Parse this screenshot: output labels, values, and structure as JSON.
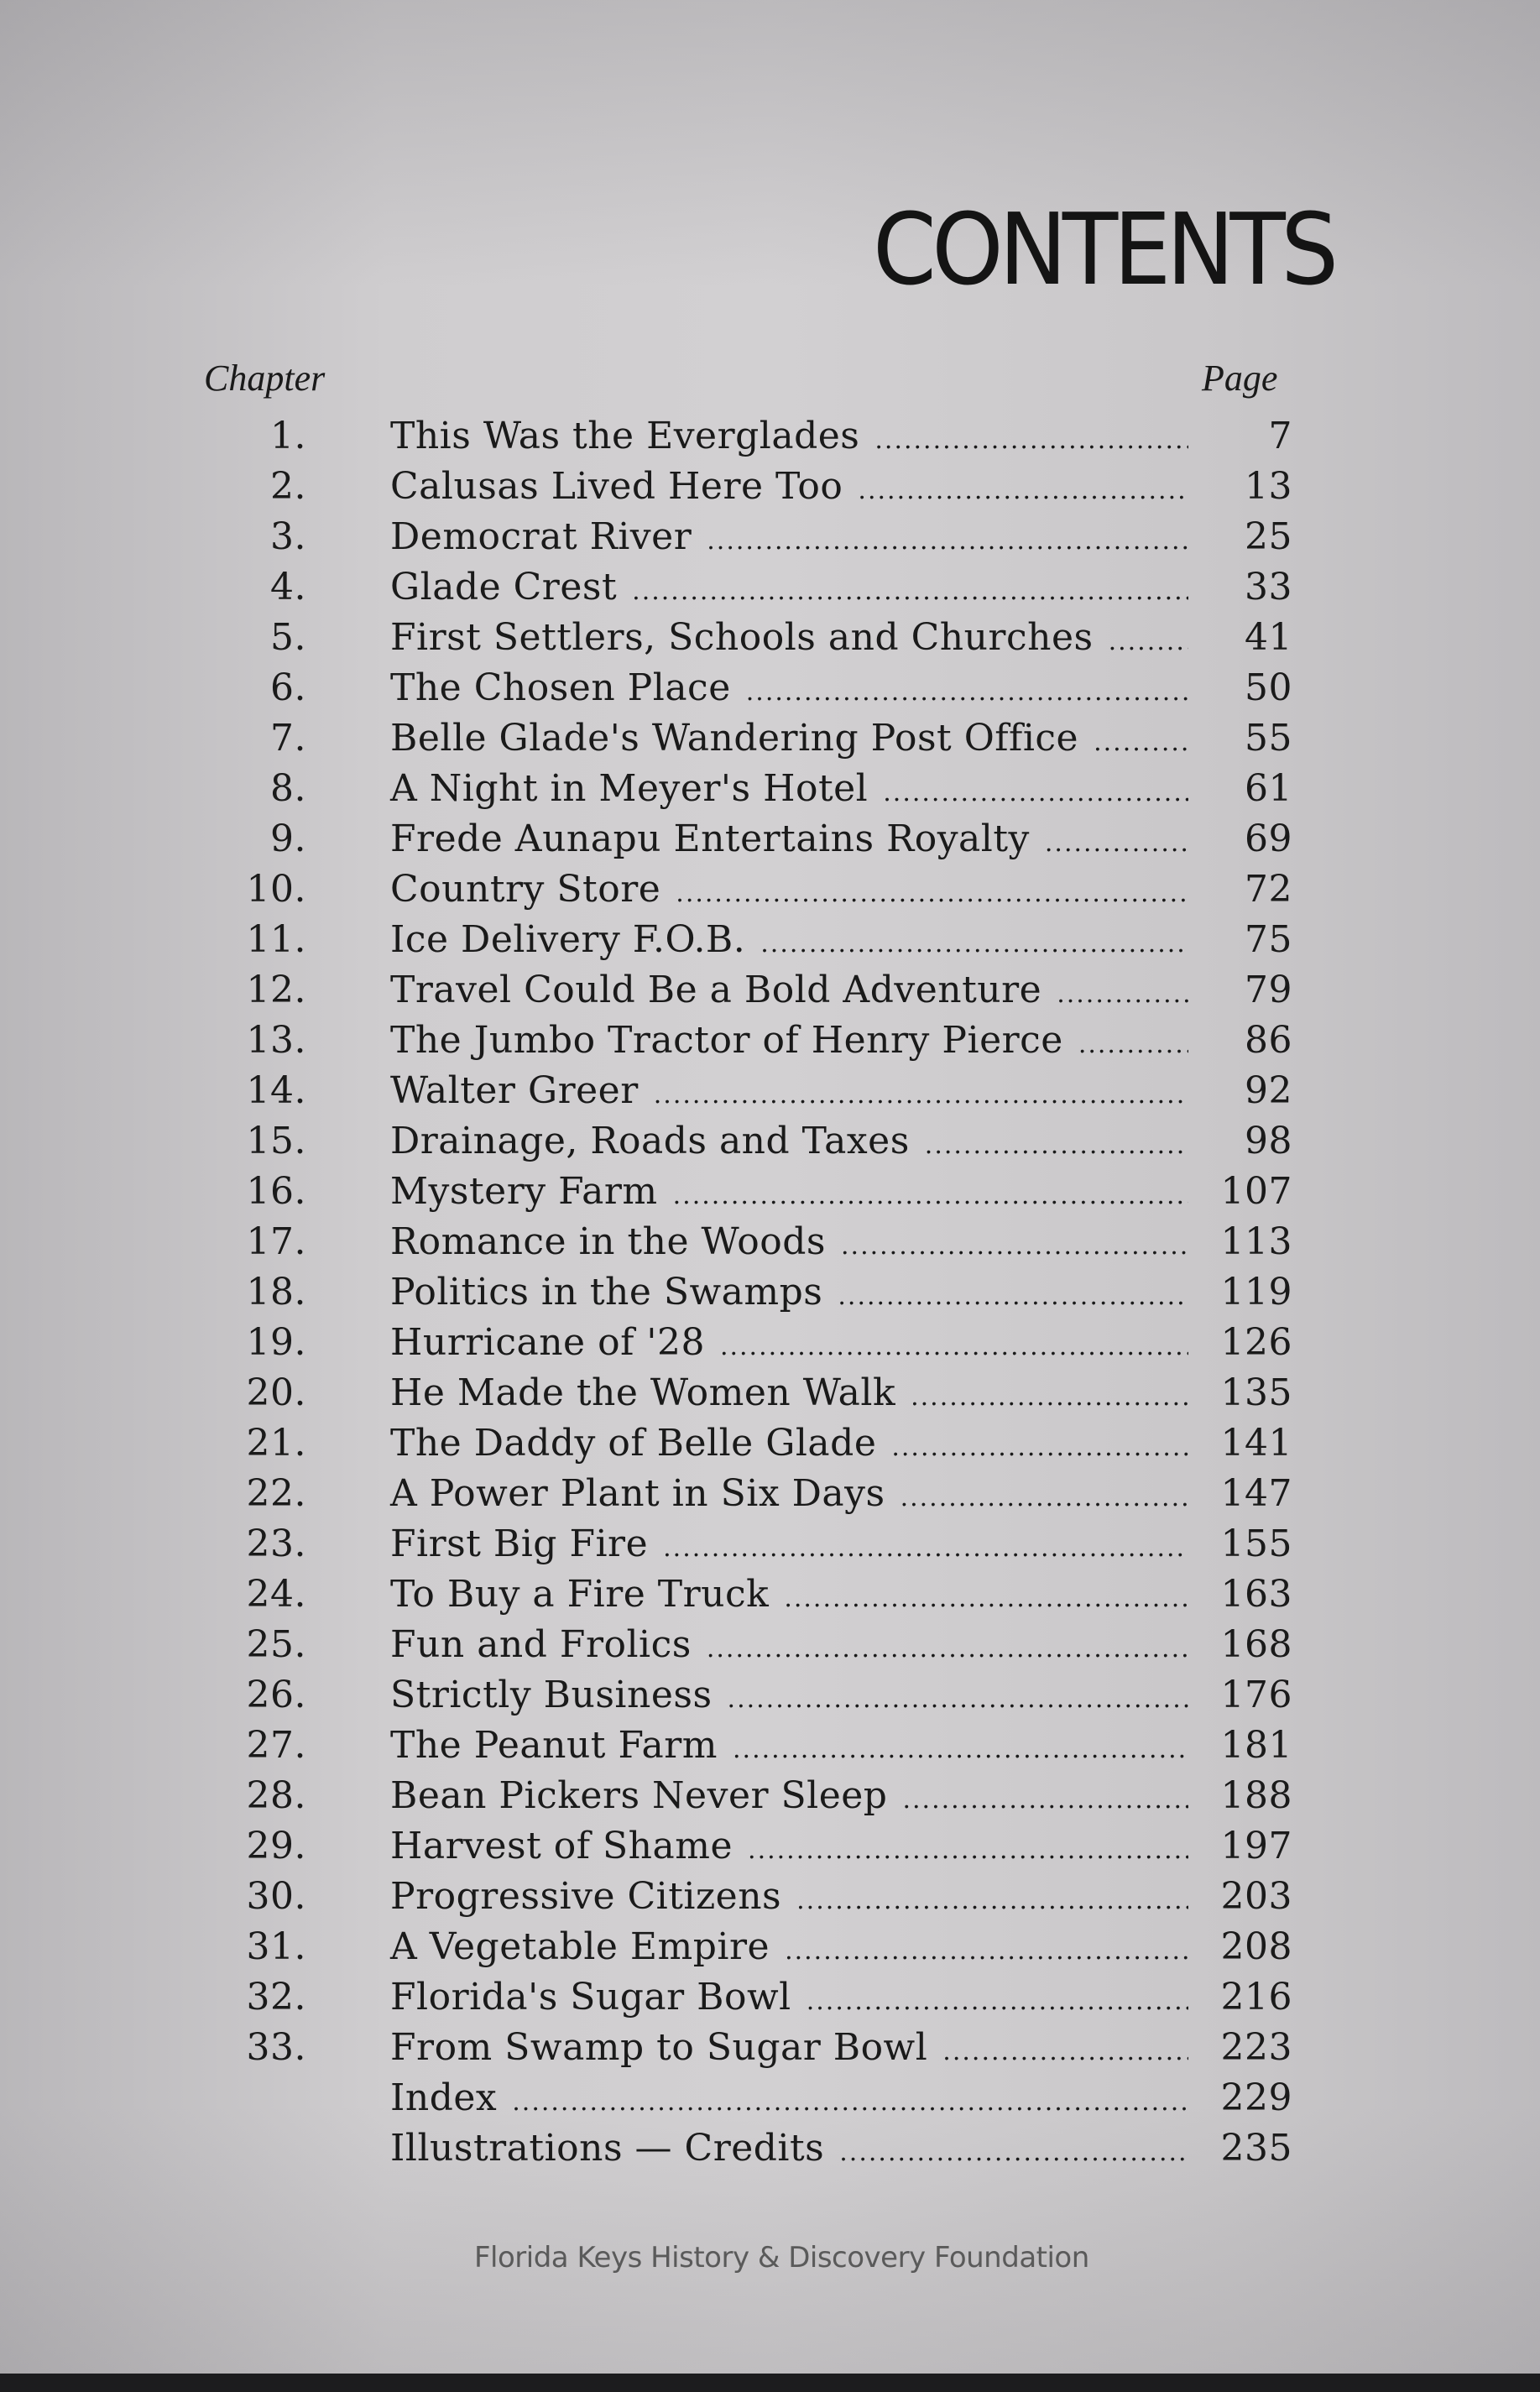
{
  "title": "CONTENTS",
  "header": {
    "chapter": "Chapter",
    "page": "Page"
  },
  "entries": [
    {
      "num": "1.",
      "title": "This Was the Everglades",
      "page": "7"
    },
    {
      "num": "2.",
      "title": "Calusas Lived Here Too",
      "page": "13"
    },
    {
      "num": "3.",
      "title": "Democrat River",
      "page": "25"
    },
    {
      "num": "4.",
      "title": "Glade Crest",
      "page": "33"
    },
    {
      "num": "5.",
      "title": "First Settlers, Schools and Churches",
      "page": "41"
    },
    {
      "num": "6.",
      "title": "The Chosen Place",
      "page": "50"
    },
    {
      "num": "7.",
      "title": "Belle Glade's Wandering Post Office",
      "page": "55"
    },
    {
      "num": "8.",
      "title": "A Night in Meyer's Hotel",
      "page": "61"
    },
    {
      "num": "9.",
      "title": "Frede Aunapu Entertains Royalty",
      "page": "69"
    },
    {
      "num": "10.",
      "title": "Country Store",
      "page": "72"
    },
    {
      "num": "11.",
      "title": "Ice Delivery F.O.B.",
      "page": "75"
    },
    {
      "num": "12.",
      "title": "Travel Could Be a Bold Adventure",
      "page": "79"
    },
    {
      "num": "13.",
      "title": "The Jumbo Tractor of Henry Pierce",
      "page": "86"
    },
    {
      "num": "14.",
      "title": "Walter Greer",
      "page": "92"
    },
    {
      "num": "15.",
      "title": "Drainage, Roads and Taxes",
      "page": "98"
    },
    {
      "num": "16.",
      "title": "Mystery Farm",
      "page": "107"
    },
    {
      "num": "17.",
      "title": "Romance in the Woods",
      "page": "113"
    },
    {
      "num": "18.",
      "title": "Politics in the Swamps",
      "page": "119"
    },
    {
      "num": "19.",
      "title": "Hurricane of '28",
      "page": "126"
    },
    {
      "num": "20.",
      "title": "He Made the Women Walk",
      "page": "135"
    },
    {
      "num": "21.",
      "title": "The Daddy of Belle Glade",
      "page": "141"
    },
    {
      "num": "22.",
      "title": "A Power Plant in Six Days",
      "page": "147"
    },
    {
      "num": "23.",
      "title": "First Big Fire",
      "page": "155"
    },
    {
      "num": "24.",
      "title": "To Buy a Fire Truck",
      "page": "163"
    },
    {
      "num": "25.",
      "title": "Fun and Frolics",
      "page": "168"
    },
    {
      "num": "26.",
      "title": "Strictly Business",
      "page": "176"
    },
    {
      "num": "27.",
      "title": "The Peanut Farm",
      "page": "181"
    },
    {
      "num": "28.",
      "title": "Bean Pickers Never Sleep",
      "page": "188"
    },
    {
      "num": "29.",
      "title": "Harvest of Shame",
      "page": "197"
    },
    {
      "num": "30.",
      "title": "Progressive Citizens",
      "page": "203"
    },
    {
      "num": "31.",
      "title": "A Vegetable Empire",
      "page": "208"
    },
    {
      "num": "32.",
      "title": "Florida's Sugar Bowl",
      "page": "216"
    },
    {
      "num": "33.",
      "title": "From Swamp to Sugar Bowl",
      "page": "223"
    },
    {
      "num": "",
      "title": "Index",
      "page": "229"
    },
    {
      "num": "",
      "title": "Illustrations — Credits",
      "page": "235"
    }
  ],
  "watermark": "Florida Keys History & Discovery Foundation"
}
